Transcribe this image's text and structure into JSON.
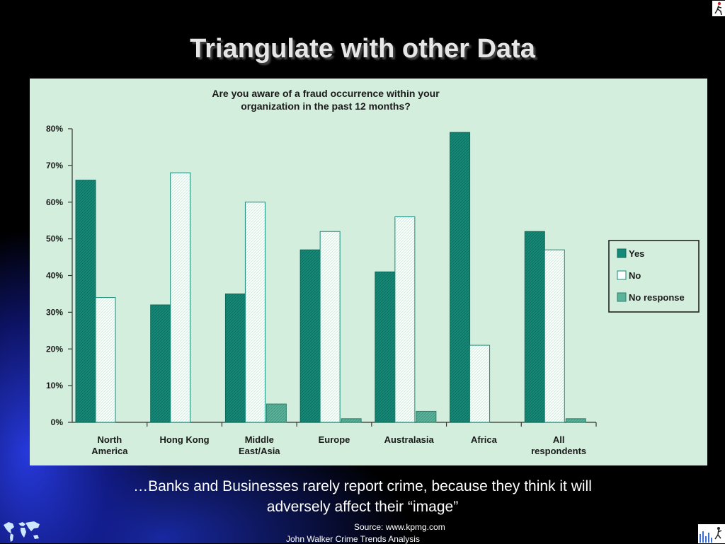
{
  "slide": {
    "title": "Triangulate with other Data",
    "caption_line1": "…Banks and Businesses rarely report crime, because they think it will",
    "caption_line2": "adversely affect their “image”",
    "source": "Source: www.kpmg.com",
    "footer": "John Walker Crime Trends Analysis",
    "icons": [
      "runner-icon",
      "world-map-icon",
      "bar-chart-figure-icon"
    ]
  },
  "chart_data": {
    "type": "bar",
    "title_line1": "Are you aware of a fraud occurrence within your",
    "title_line2": "organization in the past 12 months?",
    "categories": [
      [
        "North",
        "America"
      ],
      [
        "Hong Kong"
      ],
      [
        "Middle",
        "East/Asia"
      ],
      [
        "Europe"
      ],
      [
        "Australasia"
      ],
      [
        "Africa"
      ],
      [
        "All",
        "respondents"
      ]
    ],
    "series": [
      {
        "name": "Yes",
        "values": [
          66,
          32,
          35,
          47,
          41,
          79,
          52
        ],
        "color": "#138a78"
      },
      {
        "name": "No",
        "values": [
          34,
          68,
          60,
          52,
          56,
          21,
          47
        ],
        "color": "#ffffff"
      },
      {
        "name": "No response",
        "values": [
          0,
          0,
          5,
          1,
          3,
          0,
          1
        ],
        "color": "#5bb39a"
      }
    ],
    "yticks": [
      "0%",
      "10%",
      "20%",
      "30%",
      "40%",
      "50%",
      "60%",
      "70%",
      "80%"
    ],
    "ylim": [
      0,
      80
    ],
    "legend_position": "right",
    "grid": false
  }
}
